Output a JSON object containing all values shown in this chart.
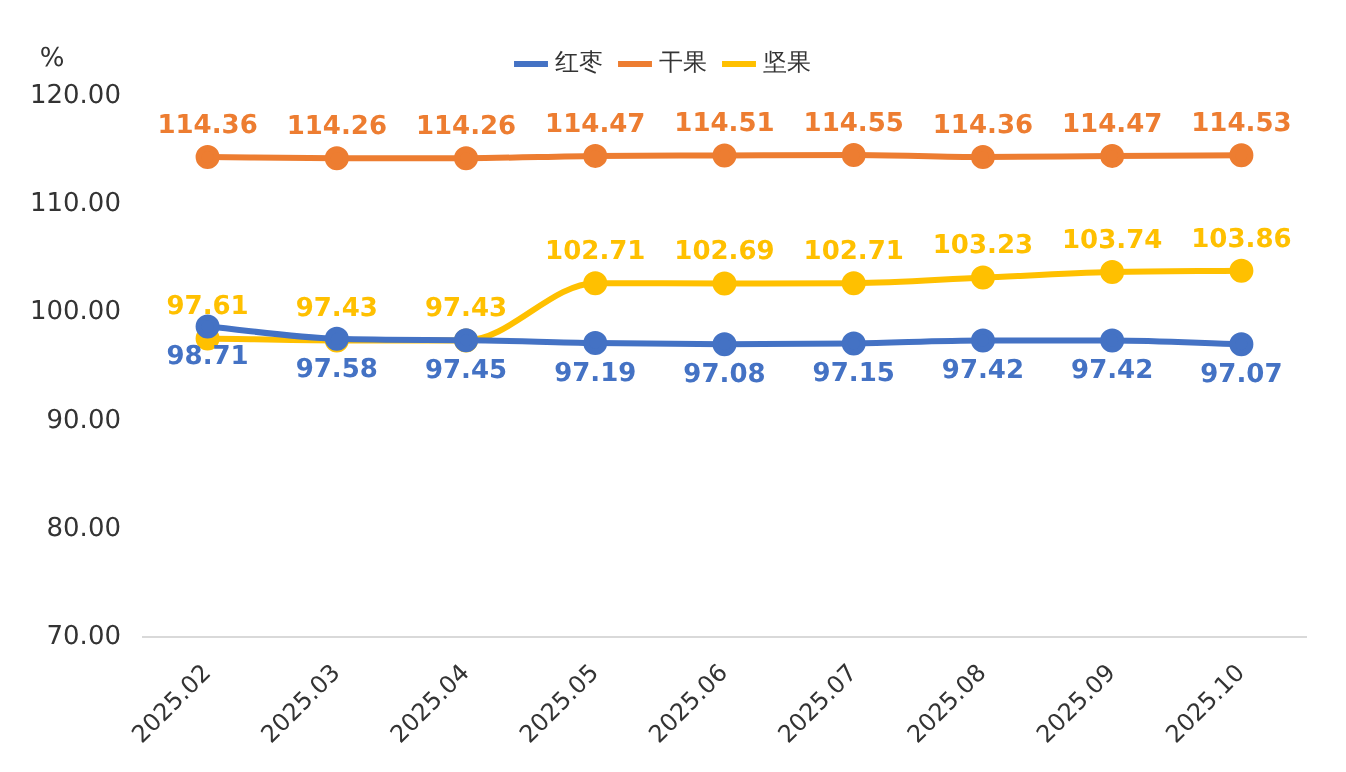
{
  "chart_data": {
    "type": "line",
    "ylabel": "%",
    "categories": [
      "2025.02",
      "2025.03",
      "2025.04",
      "2025.05",
      "2025.06",
      "2025.07",
      "2025.08",
      "2025.09",
      "2025.10"
    ],
    "series": [
      {
        "name": "红枣",
        "color": "#4472c4",
        "values": [
          98.71,
          97.58,
          97.45,
          97.19,
          97.08,
          97.15,
          97.42,
          97.42,
          97.07
        ]
      },
      {
        "name": "干果",
        "color": "#ed7d31",
        "values": [
          114.36,
          114.26,
          114.26,
          114.47,
          114.51,
          114.55,
          114.36,
          114.47,
          114.53
        ]
      },
      {
        "name": "坚果",
        "color": "#ffc000",
        "values": [
          97.61,
          97.43,
          97.43,
          102.71,
          102.69,
          102.71,
          103.23,
          103.74,
          103.86
        ]
      }
    ],
    "ylim": [
      70,
      120
    ],
    "yticks": [
      {
        "value": 70,
        "label": "70.00"
      },
      {
        "value": 80,
        "label": "80.00"
      },
      {
        "value": 90,
        "label": "90.00"
      },
      {
        "value": 100,
        "label": "100.00"
      },
      {
        "value": 110,
        "label": "110.00"
      },
      {
        "value": 120,
        "label": "120.00"
      }
    ],
    "grid": false,
    "legend": "top",
    "marker": "circle",
    "line_style": "solid",
    "data_labels": true
  }
}
